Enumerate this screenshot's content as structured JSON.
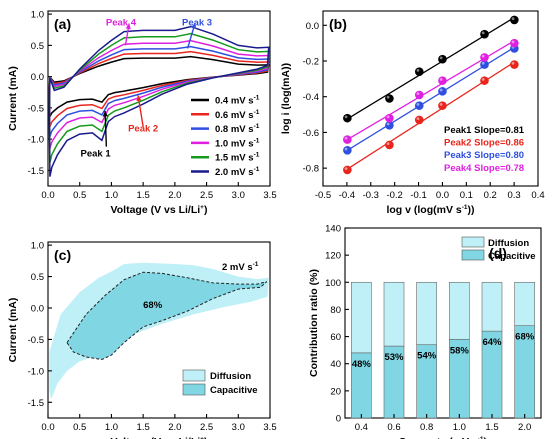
{
  "chart_data": [
    {
      "panel": "(a)",
      "type": "line",
      "xlabel": "Voltage (V vs Li/Li",
      "xlabel_sup": "+",
      "xlabel_end": ")",
      "ylabel": "Current (mA)",
      "xlim": [
        0.0,
        3.5
      ],
      "ylim": [
        -1.75,
        1.05
      ],
      "xticks": [
        0.0,
        0.5,
        1.0,
        1.5,
        2.0,
        2.5,
        3.0,
        3.5
      ],
      "xtick_labels": [
        "0.0",
        "0.5",
        "1.0",
        "1.5",
        "2.0",
        "2.5",
        "3.0",
        "3.5"
      ],
      "yticks": [
        -1.5,
        -1.0,
        -0.5,
        0.0,
        0.5,
        1.0
      ],
      "ytick_labels": [
        "-1.5",
        "-1.0",
        "-0.5",
        "0.0",
        "0.5",
        "1.0"
      ],
      "series": [
        {
          "name": "0.4 mV s",
          "sup": "-1",
          "color": "#000000",
          "scale": 0.4
        },
        {
          "name": "0.6 mV s",
          "sup": "-1",
          "color": "#e8261d",
          "scale": 0.5
        },
        {
          "name": "0.8 mV s",
          "sup": "-1",
          "color": "#2f4fe0",
          "scale": 0.6
        },
        {
          "name": "1.0 mV s",
          "sup": "-1",
          "color": "#e020e0",
          "scale": 0.72
        },
        {
          "name": "1.5 mV s",
          "sup": "-1",
          "color": "#159a1d",
          "scale": 0.86
        },
        {
          "name": "2.0 mV s",
          "sup": "-1",
          "color": "#1a1a8c",
          "scale": 1.0
        }
      ],
      "annotations": [
        {
          "text": "Peak 4",
          "color": "#e020e0",
          "x": 1.15,
          "y": 0.82
        },
        {
          "text": "Peak 3",
          "color": "#2f4fe0",
          "x": 2.35,
          "y": 0.82
        },
        {
          "text": "Peak 2",
          "color": "#e8261d",
          "x": 1.5,
          "y": -0.88
        },
        {
          "text": "Peak 1",
          "color": "#000000",
          "x": 0.75,
          "y": -1.28
        }
      ]
    },
    {
      "panel": "(b)",
      "type": "scatter",
      "xlabel": "log v (log(mV s",
      "xlabel_sup": "-1",
      "xlabel_end": "))",
      "ylabel": "log i (log(mA))",
      "xlim": [
        -0.5,
        0.4
      ],
      "ylim": [
        -0.9,
        0.08
      ],
      "xticks": [
        -0.5,
        -0.4,
        -0.3,
        -0.2,
        -0.1,
        0.0,
        0.1,
        0.2,
        0.3,
        0.4
      ],
      "xtick_labels": [
        "-0.5",
        "-0.4",
        "-0.3",
        "-0.2",
        "-0.1",
        "0.0",
        "0.1",
        "0.2",
        "0.3",
        "0.4"
      ],
      "yticks": [
        -0.8,
        -0.6,
        -0.4,
        -0.2,
        0.0
      ],
      "ytick_labels": [
        "-0.8",
        "-0.6",
        "-0.4",
        "-0.2",
        "0.0"
      ],
      "x": [
        -0.398,
        -0.222,
        -0.097,
        0.0,
        0.176,
        0.301
      ],
      "series": [
        {
          "name": "Peak1 Slope=0.81",
          "color": "#000000",
          "values": [
            -0.52,
            -0.41,
            -0.26,
            -0.19,
            -0.05,
            0.03
          ]
        },
        {
          "name": "Peak2 Slope=0.86",
          "color": "#e8261d",
          "values": [
            -0.81,
            -0.67,
            -0.53,
            -0.45,
            -0.31,
            -0.22
          ]
        },
        {
          "name": "Peak3 Slope=0.80",
          "color": "#2f4fe0",
          "values": [
            -0.7,
            -0.56,
            -0.45,
            -0.37,
            -0.22,
            -0.13
          ]
        },
        {
          "name": "Peak4 Slope=0.78",
          "color": "#e020e0",
          "values": [
            -0.64,
            -0.52,
            -0.39,
            -0.31,
            -0.18,
            -0.1
          ]
        }
      ]
    },
    {
      "panel": "(c)",
      "type": "area",
      "xlabel": "Voltage (V vs Li/Li",
      "xlabel_sup": "+",
      "xlabel_end": ")",
      "ylabel": "Current (mA)",
      "xlim": [
        0.0,
        3.5
      ],
      "ylim": [
        -1.75,
        1.05
      ],
      "xticks": [
        0.0,
        0.5,
        1.0,
        1.5,
        2.0,
        2.5,
        3.0,
        3.5
      ],
      "xtick_labels": [
        "0.0",
        "0.5",
        "1.0",
        "1.5",
        "2.0",
        "2.5",
        "3.0",
        "3.5"
      ],
      "yticks": [
        -1.5,
        -1.0,
        -0.5,
        0.0,
        0.5,
        1.0
      ],
      "ytick_labels": [
        "-1.5",
        "-1.0",
        "-0.5",
        "0.0",
        "0.5",
        "1.0"
      ],
      "rate_label": "2 mV s",
      "rate_sup": "-1",
      "center_label": "68%",
      "legend": [
        {
          "name": "Diffusion",
          "color": "#bff0f7"
        },
        {
          "name": "Capacitive",
          "color": "#80d7e3"
        }
      ]
    },
    {
      "panel": "(d)",
      "type": "bar",
      "xlabel": "Scan rate (mV s",
      "xlabel_sup": "-1",
      "xlabel_end": ")",
      "ylabel": "Contribution ratio (%)",
      "ylim": [
        0,
        140
      ],
      "yticks": [
        0,
        20,
        40,
        60,
        80,
        100,
        120,
        140
      ],
      "ytick_labels": [
        "0",
        "20",
        "40",
        "60",
        "80",
        "100",
        "120",
        "140"
      ],
      "categories": [
        "0.4",
        "0.6",
        "0.8",
        "1.0",
        "1.5",
        "2.0"
      ],
      "series": [
        {
          "name": "Capacitive",
          "color": "#80d7e3",
          "values": [
            48,
            53,
            54,
            58,
            64,
            68
          ]
        },
        {
          "name": "Diffusion",
          "color": "#bff0f7",
          "values": [
            52,
            47,
            46,
            42,
            36,
            32
          ]
        }
      ],
      "bar_labels": [
        "48%",
        "53%",
        "54%",
        "58%",
        "64%",
        "68%"
      ]
    }
  ]
}
